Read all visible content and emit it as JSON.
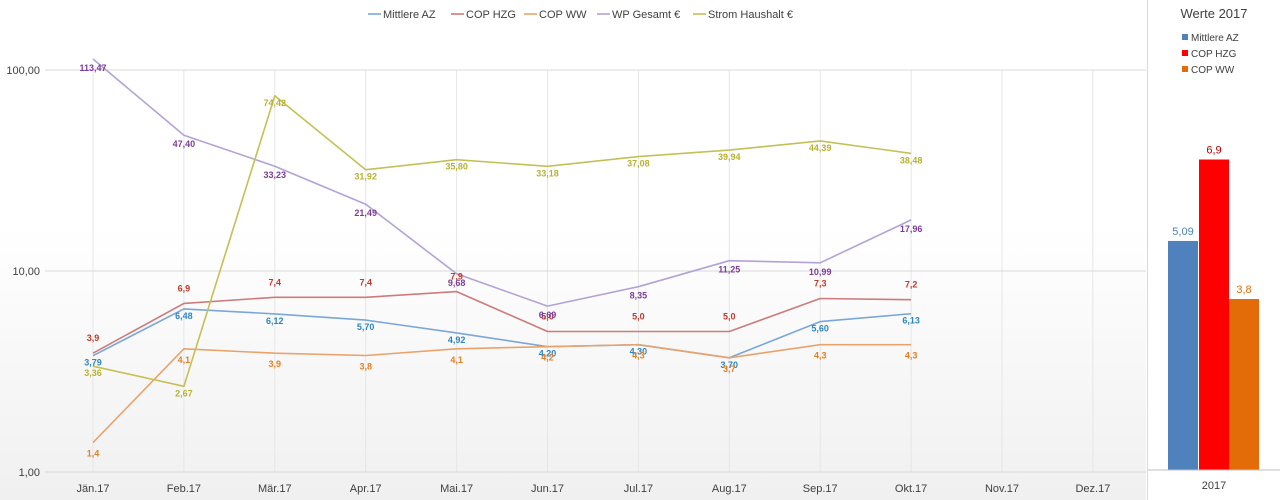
{
  "chart_data": [
    {
      "type": "line",
      "title": "",
      "xlabel": "",
      "ylabel": "",
      "yscale": "log",
      "ylim": [
        1,
        100
      ],
      "yticks": [
        "1,00",
        "10,00",
        "100,00"
      ],
      "grid": true,
      "legend": "top",
      "categories": [
        "Jän.17",
        "Feb.17",
        "Mär.17",
        "Apr.17",
        "Mai.17",
        "Jun.17",
        "Jul.17",
        "Aug.17",
        "Sep.17",
        "Okt.17",
        "Nov.17",
        "Dez.17"
      ],
      "series": [
        {
          "name": "Mittlere AZ",
          "color": "#7ba7d7",
          "label_color": "#2e86c1",
          "values": [
            3.79,
            6.48,
            6.12,
            5.7,
            4.92,
            4.2,
            4.3,
            3.7,
            5.6,
            6.13,
            null,
            null
          ],
          "labels": [
            "3,79",
            "6,48",
            "6,12",
            "5,70",
            "4,92",
            "4,20",
            "4,30",
            "3,70",
            "5,60",
            "6,13",
            "",
            ""
          ]
        },
        {
          "name": "COP HZG",
          "color": "#cd7b7b",
          "label_color": "#c0392b",
          "values": [
            3.9,
            6.9,
            7.4,
            7.4,
            7.9,
            5.0,
            5.0,
            5.0,
            7.3,
            7.2,
            null,
            null
          ],
          "labels": [
            "3,9",
            "6,9",
            "7,4",
            "7,4",
            "7,9",
            "5,0",
            "5,0",
            "5,0",
            "7,3",
            "7,2",
            "",
            ""
          ]
        },
        {
          "name": "COP WW",
          "color": "#e8a36b",
          "label_color": "#e67e22",
          "values": [
            1.4,
            4.1,
            3.9,
            3.8,
            4.1,
            4.2,
            4.3,
            3.7,
            4.3,
            4.3,
            null,
            null
          ],
          "labels": [
            "1,4",
            "4,1",
            "3,9",
            "3,8",
            "4,1",
            "4,2",
            "4,3",
            "3,7",
            "4,3",
            "4,3",
            "",
            ""
          ]
        },
        {
          "name": "WP Gesamt €",
          "color": "#b3a2d6",
          "label_color": "#7d3c98",
          "values": [
            113.47,
            47.4,
            33.23,
            21.49,
            9.68,
            6.69,
            8.35,
            11.25,
            10.99,
            17.96,
            null,
            null
          ],
          "labels": [
            "113,47",
            "47,40",
            "33,23",
            "21,49",
            "9,68",
            "6,69",
            "8,35",
            "11,25",
            "10,99",
            "17,96",
            "",
            ""
          ]
        },
        {
          "name": "Strom Haushalt €",
          "color": "#c5c055",
          "label_color": "#b7b231",
          "values": [
            3.36,
            2.67,
            74.42,
            31.92,
            35.8,
            33.18,
            37.08,
            39.94,
            44.39,
            38.48,
            null,
            null
          ],
          "labels": [
            "3,36",
            "2,67",
            "74,42",
            "31,92",
            "35,80",
            "33,18",
            "37,08",
            "39,94",
            "44,39",
            "38,48",
            "",
            ""
          ]
        }
      ]
    },
    {
      "type": "bar",
      "title": "Werte 2017",
      "legend": "top",
      "categories": [
        "2017"
      ],
      "ylim": [
        0,
        10
      ],
      "series": [
        {
          "name": "Mittlere AZ",
          "color": "#4f81bd",
          "label_color": "#4f81bd",
          "value": 5.09,
          "label": "5,09"
        },
        {
          "name": "COP HZG",
          "color": "#ff0000",
          "label_color": "#c00000",
          "value": 6.9,
          "label": "6,9"
        },
        {
          "name": "COP WW",
          "color": "#e36c09",
          "label_color": "#e36c09",
          "value": 3.8,
          "label": "3,8"
        }
      ]
    }
  ]
}
